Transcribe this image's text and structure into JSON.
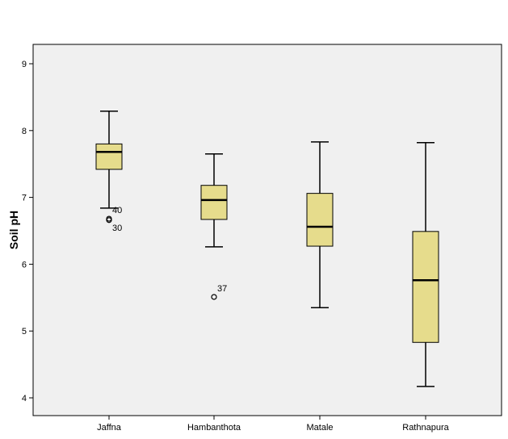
{
  "chart_data": {
    "type": "boxplot",
    "title": "",
    "xlabel": "",
    "ylabel": "Soil pH",
    "ylim": [
      3.7,
      9.3
    ],
    "yticks": [
      4,
      5,
      6,
      7,
      8,
      9
    ],
    "grid": false,
    "colors": {
      "box": "#e6dc8c",
      "background": "#f0f0f0",
      "stroke": "#000000"
    },
    "categories": [
      "Jaffna",
      "Hambanthota",
      "Matale",
      "Rathnapura"
    ],
    "boxes": [
      {
        "name": "Jaffna",
        "whisker_low": 6.84,
        "q1": 7.42,
        "median": 7.68,
        "q3": 7.8,
        "whisker_high": 8.29,
        "outliers": [
          {
            "value": 6.68,
            "label": "40"
          },
          {
            "value": 6.66,
            "label": "30"
          }
        ]
      },
      {
        "name": "Hambanthota",
        "whisker_low": 6.26,
        "q1": 6.67,
        "median": 6.96,
        "q3": 7.18,
        "whisker_high": 7.65,
        "outliers": [
          {
            "value": 5.51,
            "label": "37"
          }
        ]
      },
      {
        "name": "Matale",
        "whisker_low": 5.35,
        "q1": 6.27,
        "median": 6.56,
        "q3": 7.06,
        "whisker_high": 7.83,
        "outliers": []
      },
      {
        "name": "Rathnapura",
        "whisker_low": 4.17,
        "q1": 4.83,
        "median": 5.76,
        "q3": 6.49,
        "whisker_high": 7.82,
        "outliers": []
      }
    ]
  }
}
